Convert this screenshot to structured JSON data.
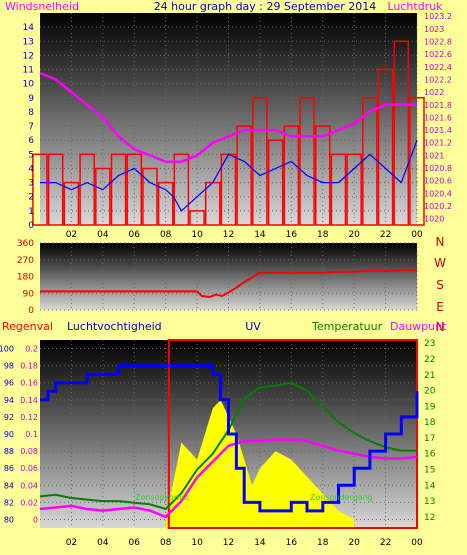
{
  "chart_data": [
    {
      "type": "line",
      "title": "24 hour graph day : 29 September 2014",
      "left_label": "Windsnelheid",
      "right_label": "Luchtdruk",
      "x_ticks": [
        "02",
        "04",
        "06",
        "08",
        "10",
        "12",
        "14",
        "16",
        "18",
        "20",
        "22",
        "00"
      ],
      "y_left_ticks": [
        "0",
        "1",
        "2",
        "3",
        "4",
        "5",
        "6",
        "7",
        "8",
        "9",
        "10",
        "11",
        "12",
        "13",
        "14"
      ],
      "y_right_ticks": [
        "1020",
        "1020.2",
        "1020.4",
        "1020.6",
        "1020.8",
        "1021",
        "1021.2",
        "1021.4",
        "1021.6",
        "1021.8",
        "1022",
        "1022.2",
        "1022.4",
        "1022.6",
        "1022.8",
        "1023",
        "1023.2"
      ],
      "ylim_left": [
        0,
        15
      ],
      "ylim_right": [
        1019.9,
        1023.25
      ],
      "series": [
        {
          "color": "#ff0000",
          "style": "bars",
          "x": [
            0,
            1,
            2,
            3,
            4,
            5,
            6,
            7,
            8,
            9,
            10,
            11,
            12,
            13,
            14,
            15,
            16,
            17,
            18,
            19,
            20,
            21,
            22,
            23,
            24
          ],
          "values": [
            5,
            5,
            3,
            5,
            4,
            5,
            5,
            4,
            3,
            5,
            1,
            3,
            5,
            7,
            9,
            6,
            7,
            9,
            7,
            5,
            5,
            9,
            11,
            13,
            9
          ]
        },
        {
          "color": "#0000ff",
          "style": "line",
          "x": [
            0,
            1,
            2,
            3,
            4,
            5,
            6,
            7,
            8,
            8.5,
            9,
            10,
            11,
            12,
            13,
            14,
            15,
            16,
            17,
            18,
            19,
            20,
            21,
            22,
            23,
            24
          ],
          "values": [
            3,
            3,
            2.5,
            3,
            2.5,
            3.5,
            4,
            3,
            2.5,
            2,
            1,
            2,
            3,
            5,
            4.5,
            3.5,
            4,
            4.5,
            3.5,
            3,
            3,
            4,
            5,
            4,
            3,
            6
          ]
        },
        {
          "color": "#ff00ff",
          "style": "line",
          "axis": "right",
          "x": [
            0,
            1,
            2,
            3,
            4,
            5,
            6,
            7,
            8,
            9,
            10,
            11,
            12,
            13,
            14,
            15,
            16,
            17,
            18,
            19,
            20,
            21,
            22,
            23,
            24
          ],
          "values": [
            1022.3,
            1022.2,
            1022.0,
            1021.8,
            1021.6,
            1021.3,
            1021.1,
            1021.0,
            1020.9,
            1020.9,
            1021.0,
            1021.2,
            1021.3,
            1021.4,
            1021.4,
            1021.4,
            1021.3,
            1021.3,
            1021.3,
            1021.4,
            1021.5,
            1021.7,
            1021.8,
            1021.8,
            1021.8
          ]
        }
      ]
    },
    {
      "type": "line",
      "title": "",
      "right_letters": [
        "N",
        "W",
        "S",
        "E",
        "N"
      ],
      "y_ticks": [
        "0",
        "90",
        "180",
        "270",
        "360"
      ],
      "ylim": [
        0,
        360
      ],
      "x_ticks": [
        "02",
        "04",
        "06",
        "08",
        "10",
        "12",
        "14",
        "16",
        "18",
        "20",
        "22",
        "00"
      ],
      "series": [
        {
          "color": "#ff0000",
          "x": [
            0,
            1,
            2,
            3,
            4,
            5,
            6,
            7,
            8,
            9,
            10,
            10.3,
            10.8,
            11.2,
            11.6,
            12,
            12.5,
            13,
            14,
            15,
            16,
            17,
            18,
            19,
            20,
            21,
            22,
            23,
            24
          ],
          "values": [
            100,
            100,
            100,
            100,
            100,
            100,
            100,
            100,
            100,
            100,
            100,
            75,
            70,
            82,
            75,
            95,
            120,
            150,
            200,
            200,
            200,
            200,
            200,
            205,
            205,
            210,
            210,
            212,
            215
          ]
        }
      ]
    },
    {
      "type": "line",
      "title": "",
      "labels": {
        "rain": "Regenval",
        "humidity": "Luchtvochtigheid",
        "uv": "UV",
        "temperature": "Temperatuur",
        "dewpoint": "Dauwpunt",
        "sunrise": "Zonsopkomst",
        "sunset": "Zonsondergang"
      },
      "y_humidity_ticks": [
        "80",
        "82",
        "84",
        "86",
        "88",
        "90",
        "92",
        "94",
        "96",
        "98",
        "100"
      ],
      "y_rain_ticks": [
        "0",
        "0.02",
        "0.04",
        "0.06",
        "0.08",
        "0.1",
        "0.12",
        "0.14",
        "0.16",
        "0.18",
        "0.2"
      ],
      "y_temp_ticks": [
        "12",
        "13",
        "14",
        "15",
        "16",
        "17",
        "18",
        "19",
        "20",
        "21",
        "22",
        "23"
      ],
      "humidity_lim": [
        79,
        101
      ],
      "temp_lim": [
        11.3,
        23.2
      ],
      "x_ticks": [
        "02",
        "04",
        "06",
        "08",
        "10",
        "12",
        "14",
        "16",
        "18",
        "20",
        "22",
        "00"
      ],
      "sunrise_hour": 8.2,
      "sunset_hour": 24,
      "series": [
        {
          "name": "Luchtvochtigheid",
          "color": "#0000ff",
          "axis": "humidity",
          "x": [
            0,
            0.5,
            1,
            2,
            3,
            4,
            5,
            6,
            8,
            10,
            11,
            11.5,
            12,
            12.5,
            13,
            14,
            15,
            16,
            17,
            18,
            19,
            20,
            21,
            22,
            23,
            24
          ],
          "values": [
            94,
            95,
            96,
            96,
            97,
            97,
            98,
            98,
            98,
            98,
            97,
            94,
            90,
            86,
            82,
            81,
            81,
            82,
            81,
            82,
            84,
            86,
            88,
            90,
            92,
            95
          ]
        },
        {
          "name": "Temperatuur",
          "color": "#008000",
          "axis": "temp",
          "x": [
            0,
            1,
            2,
            3,
            4,
            5,
            6,
            7,
            8,
            9,
            10,
            11,
            12,
            13,
            14,
            15,
            16,
            17,
            18,
            19,
            20,
            21,
            22,
            23,
            24
          ],
          "values": [
            13.3,
            13.4,
            13.2,
            13.1,
            13.0,
            13.0,
            12.9,
            12.8,
            12.5,
            13.5,
            15.0,
            16.0,
            17.5,
            19.5,
            20.2,
            20.3,
            20.5,
            20.0,
            19.0,
            18.0,
            17.3,
            16.8,
            16.4,
            16.2,
            16.2
          ]
        },
        {
          "name": "Dauwpunt",
          "color": "#ff00ff",
          "axis": "temp",
          "x": [
            0,
            1,
            2,
            3,
            4,
            5,
            6,
            7,
            8,
            9,
            10,
            11,
            12,
            13,
            14,
            15,
            16,
            17,
            18,
            19,
            20,
            21,
            22,
            23,
            24
          ],
          "values": [
            12.5,
            12.6,
            12.7,
            12.5,
            12.4,
            12.5,
            12.6,
            12.4,
            12.0,
            13.0,
            14.5,
            15.5,
            16.5,
            16.8,
            16.8,
            16.9,
            16.9,
            16.8,
            16.5,
            16.2,
            16.0,
            15.8,
            15.7,
            15.7,
            15.8
          ]
        },
        {
          "name": "UV",
          "color": "#ffff00",
          "style": "area",
          "axis": "rain",
          "x": [
            8,
            9,
            10,
            11,
            11.5,
            12,
            12.5,
            13,
            13.5,
            14,
            15,
            16,
            16.5,
            17,
            18,
            19,
            20
          ],
          "values": [
            0,
            0.09,
            0.07,
            0.13,
            0.14,
            0.12,
            0.1,
            0.07,
            0.04,
            0.06,
            0.08,
            0.07,
            0.06,
            0.05,
            0.03,
            0.01,
            0
          ]
        }
      ]
    }
  ],
  "colors": {
    "background": "#ffff99",
    "title": "#0000cc",
    "label_magenta": "#ff00ff",
    "label_red": "#ff0000",
    "label_green": "#008000",
    "label_blue": "#0000cc"
  }
}
